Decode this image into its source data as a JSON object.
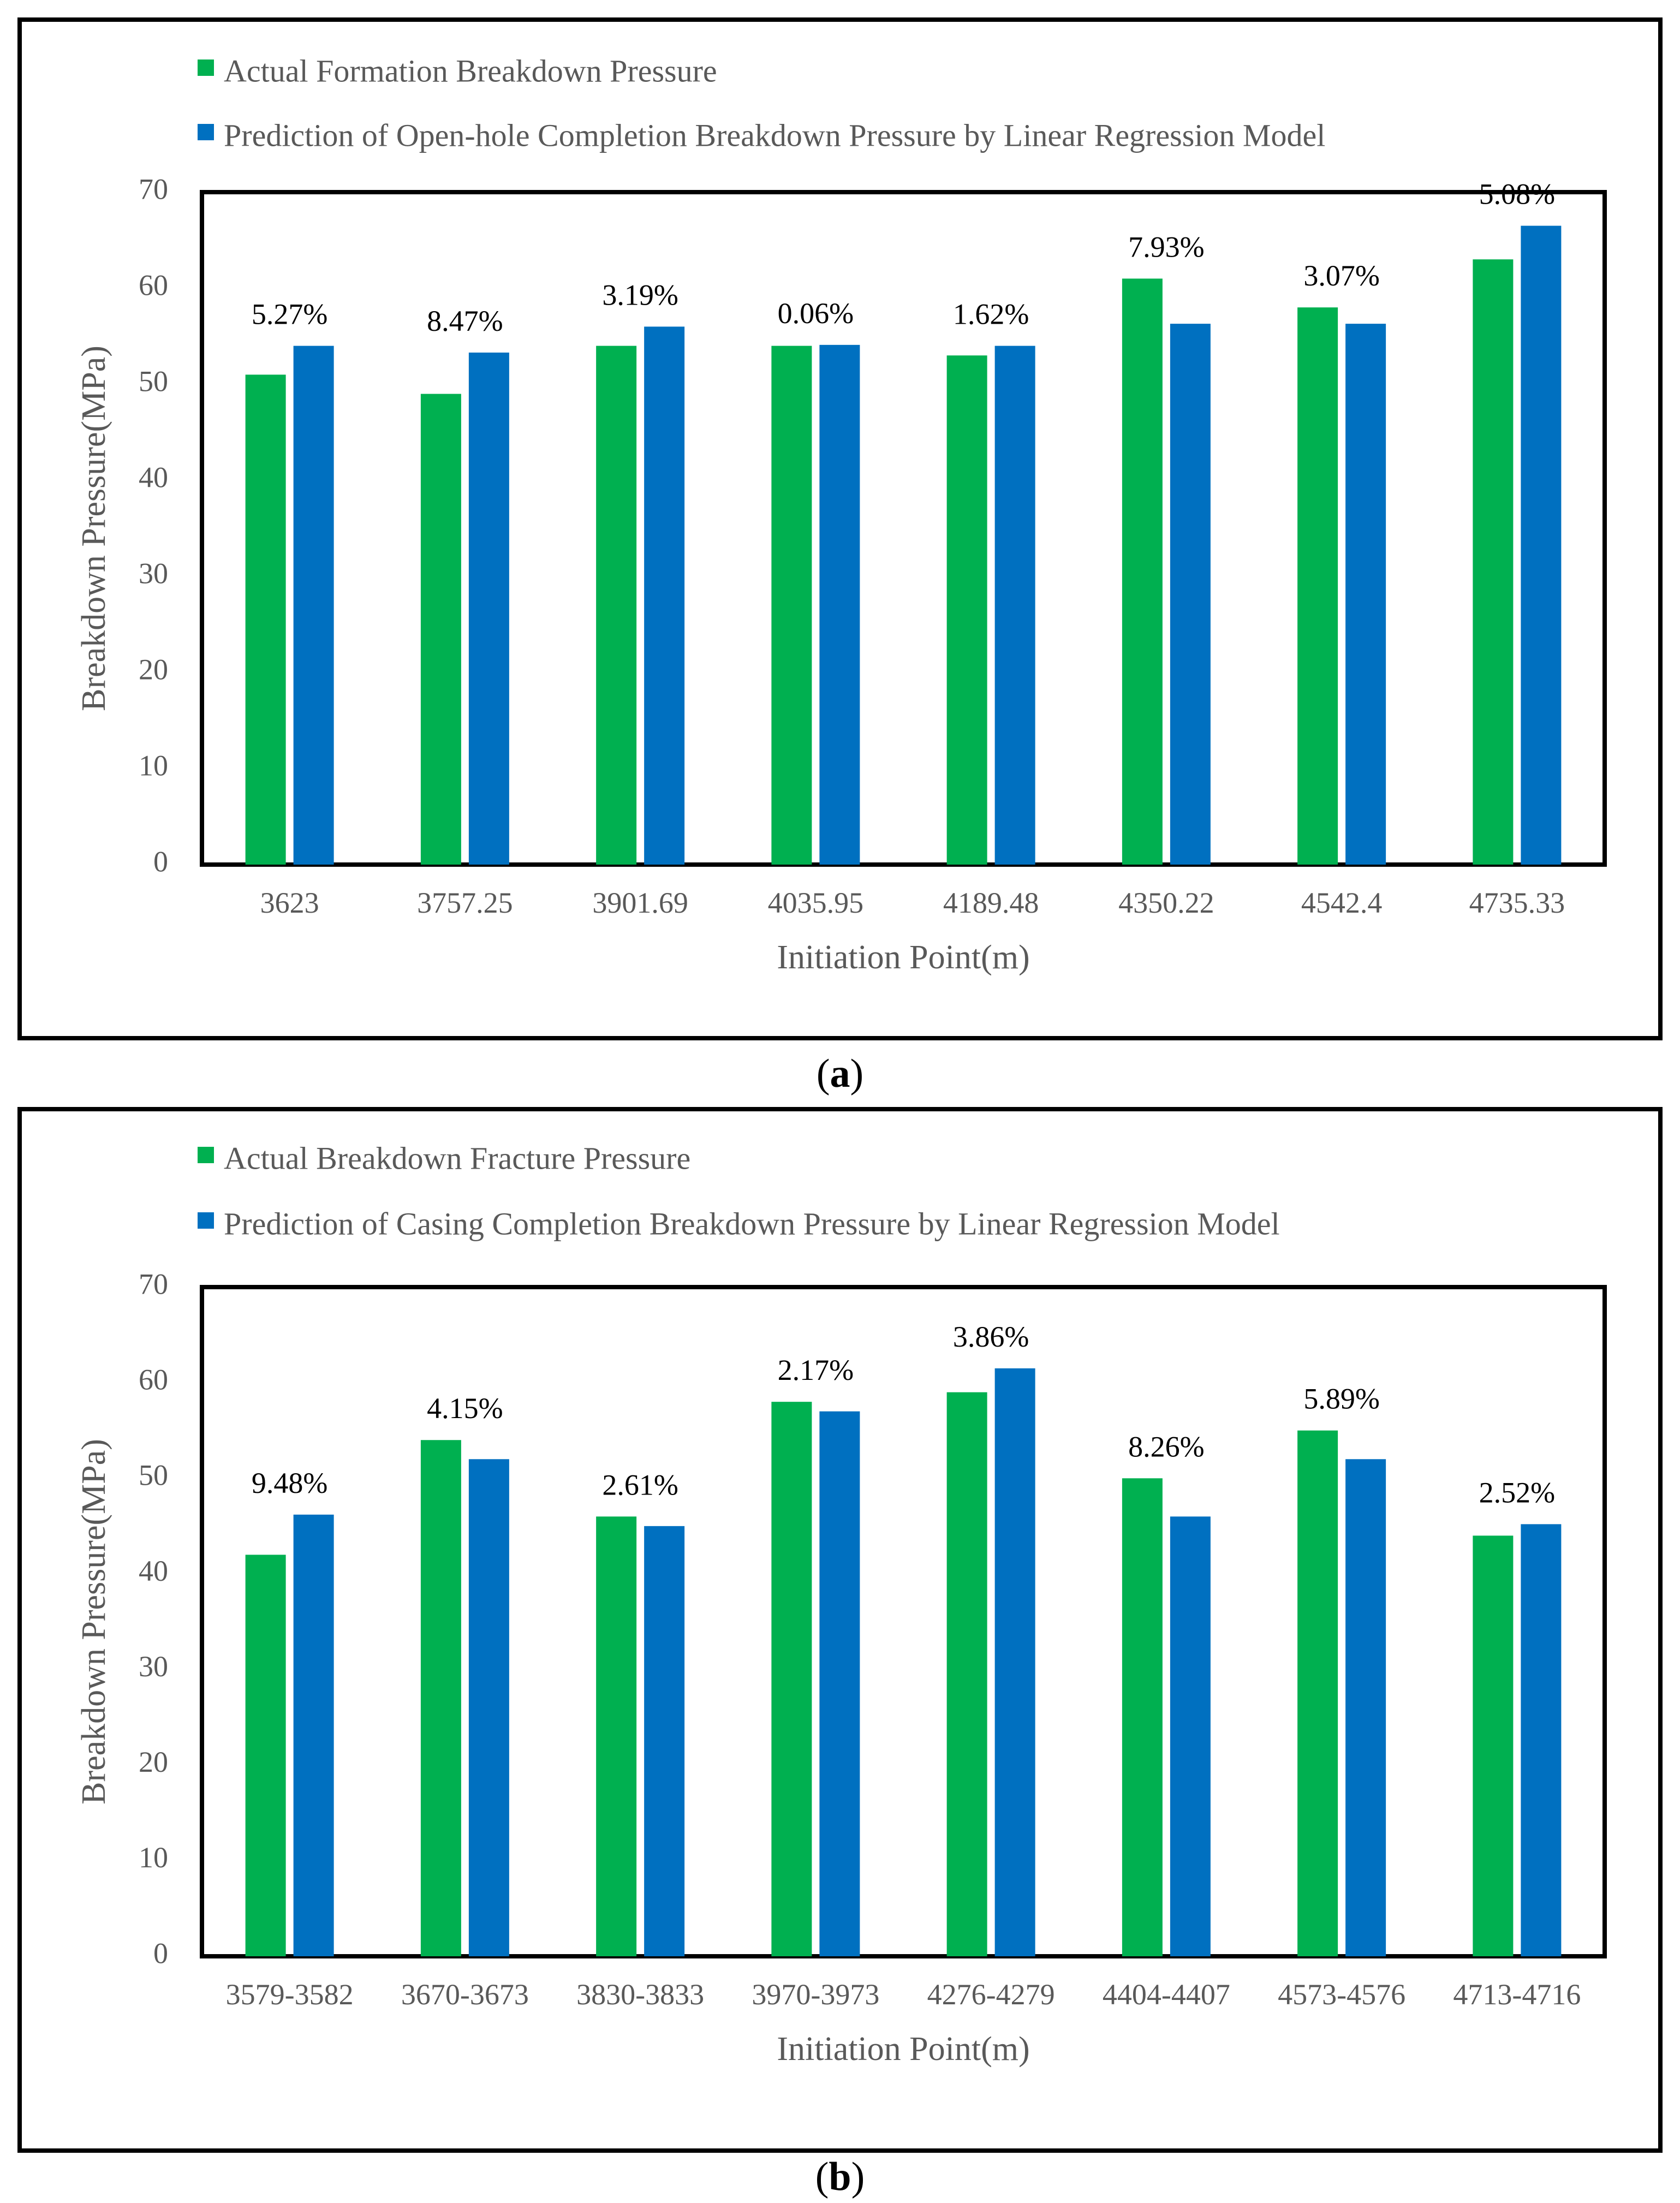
{
  "colors": {
    "actual": "#00b050",
    "predicted": "#0070c0",
    "frame": "#000000",
    "text": "#595959"
  },
  "panels": [
    {
      "caption_letter": "a",
      "chart_data": {
        "type": "bar",
        "title": "",
        "xlabel": "Initiation Point(m)",
        "ylabel": "Breakdown Pressure(MPa)",
        "ylim": [
          0,
          70
        ],
        "yticks": [
          0,
          10,
          20,
          30,
          40,
          50,
          60,
          70
        ],
        "grid": false,
        "legend_position": "top-left",
        "categories": [
          "3623",
          "3757.25",
          "3901.69",
          "4035.95",
          "4189.48",
          "4350.22",
          "4542.4",
          "4735.33"
        ],
        "series": [
          {
            "name": "Actual Formation Breakdown Pressure",
            "values": [
              51,
              49,
              54,
              54,
              53,
              61,
              58,
              63
            ]
          },
          {
            "name": "Prediction of Open-hole Completion Breakdown Pressure by Linear Regression Model",
            "values": [
              54,
              53.3,
              56,
              54.1,
              54,
              56.3,
              56.3,
              66.5
            ]
          }
        ],
        "annotations": [
          "5.27%",
          "8.47%",
          "3.19%",
          "0.06%",
          "1.62%",
          "7.93%",
          "3.07%",
          "5.08%"
        ]
      }
    },
    {
      "caption_letter": "b",
      "chart_data": {
        "type": "bar",
        "title": "",
        "xlabel": "Initiation Point(m)",
        "ylabel": "Breakdown Pressure(MPa)",
        "ylim": [
          0,
          70
        ],
        "yticks": [
          0,
          10,
          20,
          30,
          40,
          50,
          60,
          70
        ],
        "grid": false,
        "legend_position": "top-left",
        "categories": [
          "3579-3582",
          "3670-3673",
          "3830-3833",
          "3970-3973",
          "4276-4279",
          "4404-4407",
          "4573-4576",
          "4713-4716"
        ],
        "series": [
          {
            "name": "Actual Breakdown Fracture Pressure",
            "values": [
              42,
              54,
              46,
              58,
              59,
              50,
              55,
              44
            ]
          },
          {
            "name": "Prediction of Casing Completion Breakdown Pressure by Linear Regression Model",
            "values": [
              46.2,
              52,
              45,
              57,
              61.5,
              46,
              52,
              45.2
            ]
          }
        ],
        "annotations": [
          "9.48%",
          "4.15%",
          "2.61%",
          "2.17%",
          "3.86%",
          "8.26%",
          "5.89%",
          "2.52%"
        ]
      }
    }
  ]
}
